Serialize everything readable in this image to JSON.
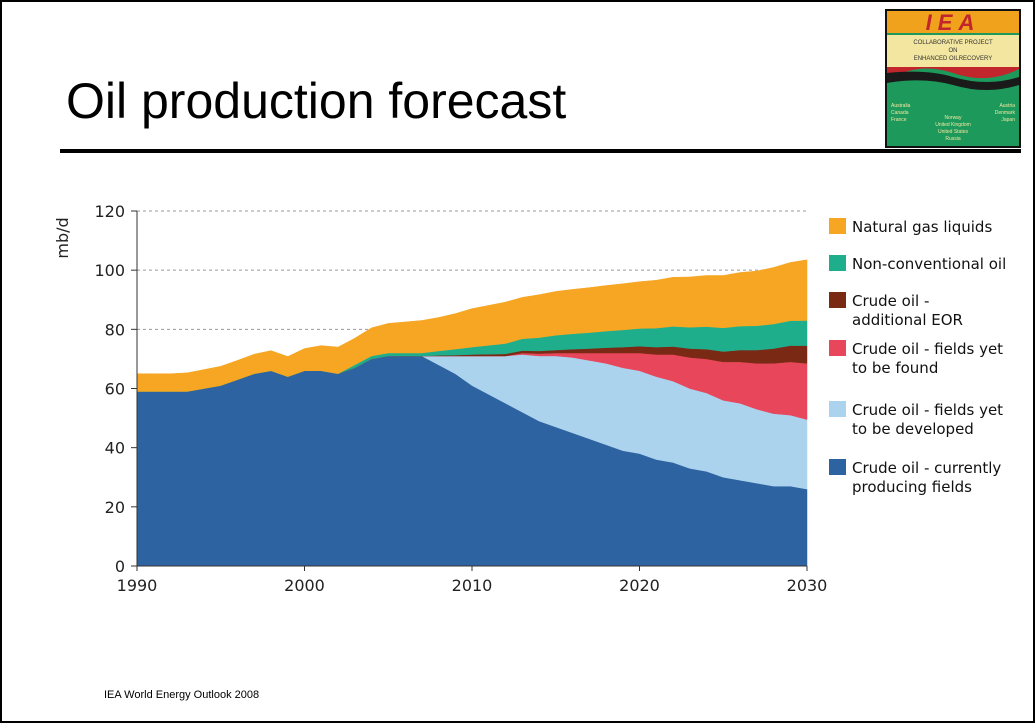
{
  "slide": {
    "title": "Oil production forecast",
    "source": "IEA World Energy Outlook 2008"
  },
  "logo": {
    "letters": "IEA",
    "line1": "COLLABORATIVE PROJECT",
    "line2": "ON",
    "line3": "ENHANCED OILRECOVERY",
    "countries_left": [
      "Australia",
      "Canada",
      "France"
    ],
    "countries_right": [
      "Austria",
      "Denmark",
      "Japan"
    ],
    "countries_center": [
      "Norway",
      "United Kingdom",
      "United States",
      "Russia"
    ],
    "colors": {
      "orange": "#f0a21c",
      "red": "#c0262c",
      "green": "#1d9a5b",
      "yellow": "#f2e6a0"
    }
  },
  "chart_data": {
    "type": "area",
    "stacked": true,
    "ylabel": "mb/d",
    "xlabel": "",
    "xlim": [
      1990,
      2030
    ],
    "ylim": [
      0,
      120
    ],
    "x_ticks": [
      "1990",
      "2000",
      "2010",
      "2020",
      "2030"
    ],
    "y_ticks": [
      "0",
      "20",
      "40",
      "60",
      "80",
      "100",
      "120"
    ],
    "grid": "horizontal dashed",
    "legend_position": "right",
    "x": [
      1990,
      1991,
      1992,
      1993,
      1994,
      1995,
      1996,
      1997,
      1998,
      1999,
      2000,
      2001,
      2002,
      2003,
      2004,
      2005,
      2006,
      2007,
      2008,
      2009,
      2010,
      2011,
      2012,
      2013,
      2014,
      2015,
      2016,
      2017,
      2018,
      2019,
      2020,
      2021,
      2022,
      2023,
      2024,
      2025,
      2026,
      2027,
      2028,
      2029,
      2030
    ],
    "series": [
      {
        "name": "Crude oil - currently producing fields",
        "color": "#2e63a2",
        "values": [
          59,
          59,
          59,
          59,
          60,
          61,
          63,
          65,
          66,
          64,
          66,
          66,
          65,
          67,
          70,
          71,
          71,
          71,
          68,
          65,
          61,
          58,
          55,
          52,
          49,
          47,
          45,
          43,
          41,
          39,
          38,
          36,
          35,
          33,
          32,
          30,
          29,
          28,
          27,
          27,
          26
        ]
      },
      {
        "name": "Crude oil - fields yet to be developed",
        "color": "#acd3ee",
        "values": [
          0,
          0,
          0,
          0,
          0,
          0,
          0,
          0,
          0,
          0,
          0,
          0,
          0,
          0,
          0,
          0,
          0,
          0,
          3,
          6,
          10,
          13,
          16,
          19.5,
          22,
          24,
          25.5,
          26.5,
          27.5,
          28,
          28,
          28,
          27.5,
          27,
          26.5,
          26,
          26,
          25,
          24.5,
          24,
          23.5
        ]
      },
      {
        "name": "Crude oil - fields yet to be found",
        "color": "#e8465a",
        "values": [
          0,
          0,
          0,
          0,
          0,
          0,
          0,
          0,
          0,
          0,
          0,
          0,
          0,
          0,
          0,
          0,
          0,
          0,
          0,
          0,
          0,
          0,
          0,
          0.5,
          0.8,
          1,
          1.5,
          2.5,
          3.5,
          5,
          6,
          7.5,
          9,
          10.5,
          11.5,
          13,
          14,
          15.5,
          17,
          18,
          19
        ]
      },
      {
        "name": "Crude oil - additional EOR",
        "color": "#7a2a14",
        "values": [
          0,
          0,
          0,
          0,
          0,
          0,
          0,
          0,
          0,
          0,
          0,
          0,
          0,
          0,
          0,
          0,
          0,
          0,
          0.2,
          0.3,
          0.5,
          0.6,
          0.7,
          0.8,
          0.9,
          1,
          1.3,
          1.5,
          1.8,
          2,
          2.3,
          2.5,
          2.7,
          3,
          3.3,
          3.5,
          4,
          4.5,
          5,
          5.5,
          6
        ]
      },
      {
        "name": "Non-conventional oil",
        "color": "#1fae8c",
        "values": [
          0,
          0,
          0,
          0,
          0,
          0,
          0,
          0,
          0,
          0,
          0,
          0,
          0,
          1,
          1,
          1,
          1,
          1,
          1.5,
          2,
          2.5,
          3,
          3.5,
          4,
          4.5,
          5,
          5.2,
          5.4,
          5.6,
          5.8,
          6,
          6.4,
          6.8,
          7.2,
          7.6,
          8,
          8.1,
          8.2,
          8.3,
          8.4,
          8.5
        ]
      },
      {
        "name": "Natural gas liquids",
        "color": "#f6a623",
        "values": [
          6,
          6,
          6,
          6.3,
          6.4,
          6.5,
          6.5,
          6.6,
          6.8,
          6.8,
          7.5,
          8.5,
          9,
          9,
          9.5,
          10,
          10.5,
          11,
          11.3,
          12,
          13,
          13.5,
          14,
          14,
          14.5,
          14.8,
          15,
          15.2,
          15.4,
          15.6,
          15.8,
          16.2,
          16.6,
          17,
          17.3,
          17.7,
          18.1,
          18.5,
          19.1,
          19.7,
          20.5
        ]
      }
    ],
    "legend_order": [
      {
        "name": "Natural gas liquids",
        "color": "#f6a623",
        "lines": [
          "Natural gas liquids"
        ]
      },
      {
        "name": "Non-conventional oil",
        "color": "#1fae8c",
        "lines": [
          "Non-conventional oil"
        ]
      },
      {
        "name": "Crude oil - additional EOR",
        "color": "#7a2a14",
        "lines": [
          "Crude oil -",
          "additional EOR"
        ]
      },
      {
        "name": "Crude oil - fields yet to be found",
        "color": "#e8465a",
        "lines": [
          "Crude oil - fields yet",
          "to be found"
        ]
      },
      {
        "name": "Crude oil - fields yet to be developed",
        "color": "#acd3ee",
        "lines": [
          "Crude oil - fields yet",
          "to be developed"
        ]
      },
      {
        "name": "Crude oil - currently producing fields",
        "color": "#2e63a2",
        "lines": [
          "Crude oil - currently",
          "producing fields"
        ]
      }
    ]
  }
}
